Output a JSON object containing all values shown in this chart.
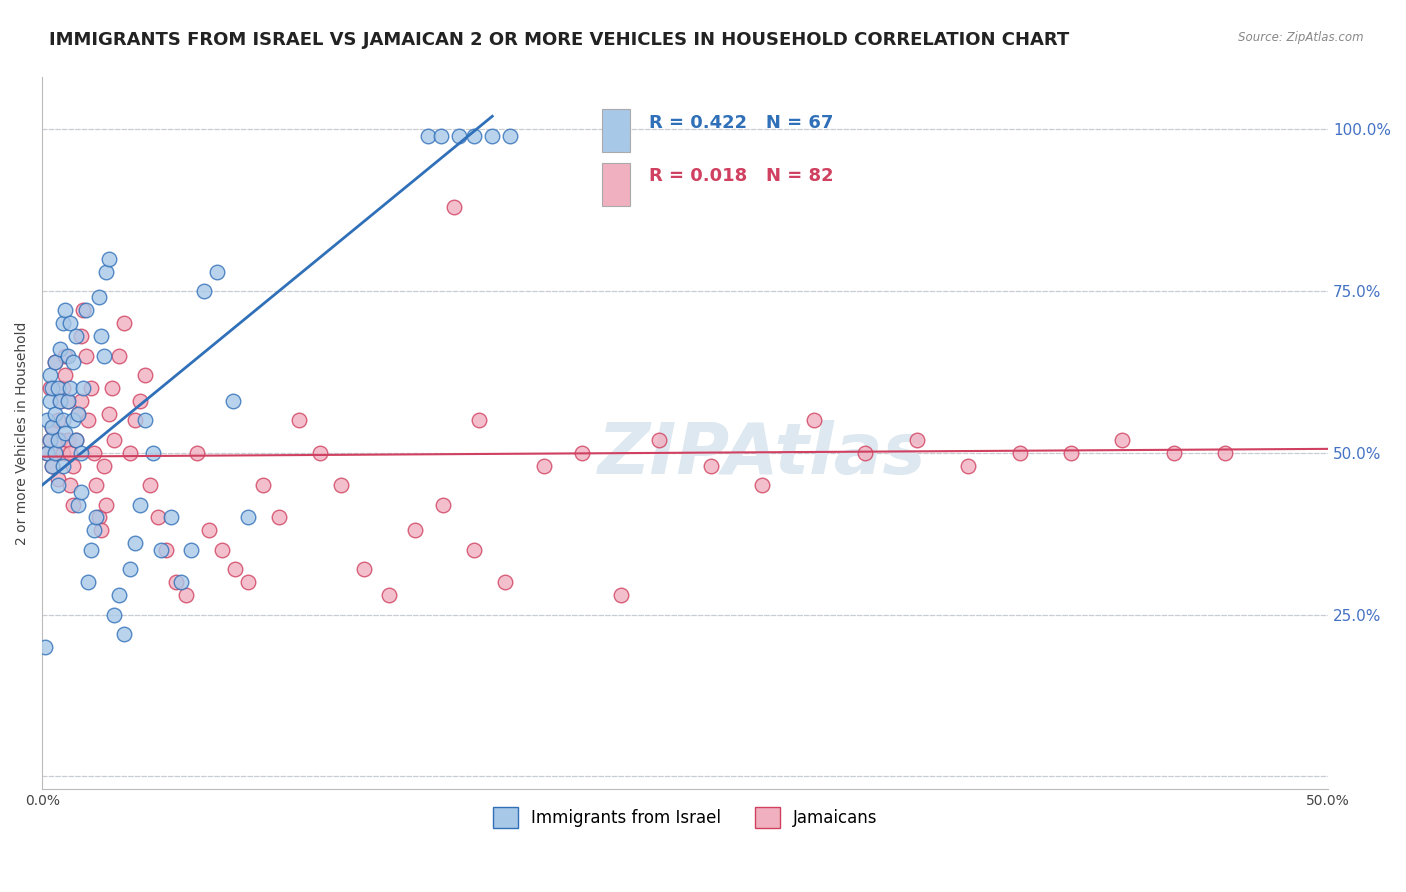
{
  "title": "IMMIGRANTS FROM ISRAEL VS JAMAICAN 2 OR MORE VEHICLES IN HOUSEHOLD CORRELATION CHART",
  "source": "Source: ZipAtlas.com",
  "ylabel": "2 or more Vehicles in Household",
  "legend1_label": "Immigrants from Israel",
  "legend2_label": "Jamaicans",
  "R_israel": 0.422,
  "N_israel": 67,
  "R_jamaican": 0.018,
  "N_jamaican": 82,
  "blue_color": "#a8c8e8",
  "pink_color": "#f0b0c0",
  "blue_line_color": "#3070b8",
  "pink_line_color": "#d04060",
  "watermark_text": "ZIPAtlas",
  "watermark_color": "#dde8f0",
  "background_color": "#ffffff",
  "grid_color": "#c8cdd4",
  "title_fontsize": 13,
  "axis_label_fontsize": 10,
  "tick_fontsize": 10,
  "legend_fontsize": 12,
  "stat_fontsize": 13,
  "xlim": [
    0.0,
    0.5
  ],
  "ylim": [
    -0.02,
    1.08
  ],
  "yticks": [
    0.0,
    0.25,
    0.5,
    0.75,
    1.0
  ],
  "ytick_right_labels": [
    "",
    "25.0%",
    "50.0%",
    "75.0%",
    "100.0%"
  ],
  "israel_x": [
    0.001,
    0.002,
    0.002,
    0.003,
    0.003,
    0.003,
    0.004,
    0.004,
    0.004,
    0.005,
    0.005,
    0.005,
    0.006,
    0.006,
    0.006,
    0.007,
    0.007,
    0.008,
    0.008,
    0.008,
    0.009,
    0.009,
    0.01,
    0.01,
    0.011,
    0.011,
    0.012,
    0.012,
    0.013,
    0.013,
    0.014,
    0.014,
    0.015,
    0.015,
    0.016,
    0.017,
    0.018,
    0.019,
    0.02,
    0.021,
    0.022,
    0.023,
    0.024,
    0.025,
    0.026,
    0.028,
    0.03,
    0.032,
    0.034,
    0.036,
    0.038,
    0.04,
    0.043,
    0.046,
    0.05,
    0.054,
    0.058,
    0.063,
    0.068,
    0.074,
    0.08,
    0.15,
    0.155,
    0.162,
    0.168,
    0.175,
    0.182
  ],
  "israel_y": [
    0.2,
    0.5,
    0.55,
    0.52,
    0.58,
    0.62,
    0.48,
    0.54,
    0.6,
    0.5,
    0.56,
    0.64,
    0.45,
    0.6,
    0.52,
    0.58,
    0.66,
    0.48,
    0.55,
    0.7,
    0.72,
    0.53,
    0.65,
    0.58,
    0.6,
    0.7,
    0.64,
    0.55,
    0.52,
    0.68,
    0.42,
    0.56,
    0.5,
    0.44,
    0.6,
    0.72,
    0.3,
    0.35,
    0.38,
    0.4,
    0.74,
    0.68,
    0.65,
    0.78,
    0.8,
    0.25,
    0.28,
    0.22,
    0.32,
    0.36,
    0.42,
    0.55,
    0.5,
    0.35,
    0.4,
    0.3,
    0.35,
    0.75,
    0.78,
    0.58,
    0.4,
    0.99,
    0.99,
    0.99,
    0.99,
    0.99,
    0.99
  ],
  "jamaican_x": [
    0.002,
    0.003,
    0.003,
    0.004,
    0.004,
    0.005,
    0.005,
    0.006,
    0.006,
    0.007,
    0.007,
    0.008,
    0.008,
    0.009,
    0.009,
    0.01,
    0.01,
    0.011,
    0.011,
    0.012,
    0.012,
    0.013,
    0.014,
    0.015,
    0.015,
    0.016,
    0.017,
    0.018,
    0.019,
    0.02,
    0.021,
    0.022,
    0.023,
    0.024,
    0.025,
    0.026,
    0.027,
    0.028,
    0.03,
    0.032,
    0.034,
    0.036,
    0.038,
    0.04,
    0.042,
    0.045,
    0.048,
    0.052,
    0.056,
    0.06,
    0.065,
    0.07,
    0.075,
    0.08,
    0.086,
    0.092,
    0.1,
    0.108,
    0.116,
    0.125,
    0.135,
    0.145,
    0.156,
    0.168,
    0.18,
    0.195,
    0.21,
    0.225,
    0.24,
    0.26,
    0.28,
    0.3,
    0.32,
    0.34,
    0.36,
    0.38,
    0.4,
    0.42,
    0.44,
    0.46,
    0.16,
    0.17
  ],
  "jamaican_y": [
    0.5,
    0.52,
    0.6,
    0.48,
    0.54,
    0.5,
    0.64,
    0.46,
    0.55,
    0.52,
    0.58,
    0.5,
    0.6,
    0.62,
    0.65,
    0.58,
    0.52,
    0.5,
    0.45,
    0.48,
    0.42,
    0.52,
    0.56,
    0.58,
    0.68,
    0.72,
    0.65,
    0.55,
    0.6,
    0.5,
    0.45,
    0.4,
    0.38,
    0.48,
    0.42,
    0.56,
    0.6,
    0.52,
    0.65,
    0.7,
    0.5,
    0.55,
    0.58,
    0.62,
    0.45,
    0.4,
    0.35,
    0.3,
    0.28,
    0.5,
    0.38,
    0.35,
    0.32,
    0.3,
    0.45,
    0.4,
    0.55,
    0.5,
    0.45,
    0.32,
    0.28,
    0.38,
    0.42,
    0.35,
    0.3,
    0.48,
    0.5,
    0.28,
    0.52,
    0.48,
    0.45,
    0.55,
    0.5,
    0.52,
    0.48,
    0.5,
    0.5,
    0.52,
    0.5,
    0.5,
    0.88,
    0.55
  ],
  "blue_line_x": [
    0.0,
    0.175
  ],
  "blue_line_y": [
    0.45,
    1.02
  ],
  "pink_line_x": [
    0.0,
    0.5
  ],
  "pink_line_y": [
    0.494,
    0.506
  ]
}
